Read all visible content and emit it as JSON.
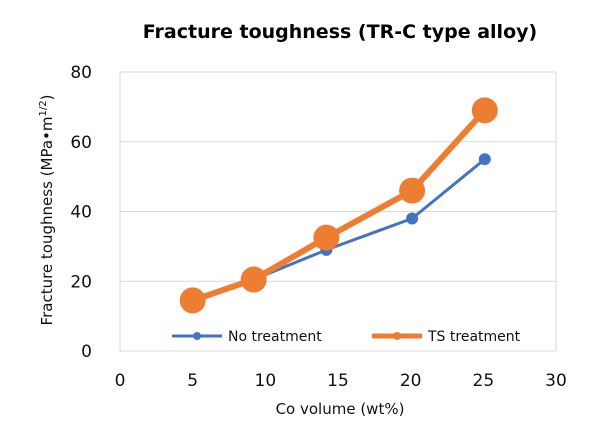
{
  "chart_data": {
    "type": "line",
    "title": "Fracture toughness (TR-C type alloy)",
    "xlabel": "Co volume (wt%)",
    "ylabel": "Fracture toughness (MPa•m",
    "ylabel_sup": "1/2",
    "ylabel_close": ")",
    "xlim": [
      0,
      30
    ],
    "ylim": [
      0,
      80
    ],
    "xticks": [
      0,
      5,
      10,
      15,
      20,
      25,
      30
    ],
    "yticks": [
      0,
      20,
      40,
      60,
      80
    ],
    "grid": "horizontal",
    "legend_position": "bottom-inside",
    "series": [
      {
        "name": "No treatment",
        "color": "#4472C4",
        "x": [
          5,
          9.2,
          14.2,
          20.1,
          25.1
        ],
        "y": [
          14.5,
          20.5,
          29,
          38,
          55
        ]
      },
      {
        "name": "TS treatment",
        "color": "#ED7D31",
        "x": [
          5,
          9.2,
          14.2,
          20.1,
          25.1
        ],
        "y": [
          14.5,
          20.5,
          32.5,
          46,
          69
        ]
      }
    ]
  }
}
